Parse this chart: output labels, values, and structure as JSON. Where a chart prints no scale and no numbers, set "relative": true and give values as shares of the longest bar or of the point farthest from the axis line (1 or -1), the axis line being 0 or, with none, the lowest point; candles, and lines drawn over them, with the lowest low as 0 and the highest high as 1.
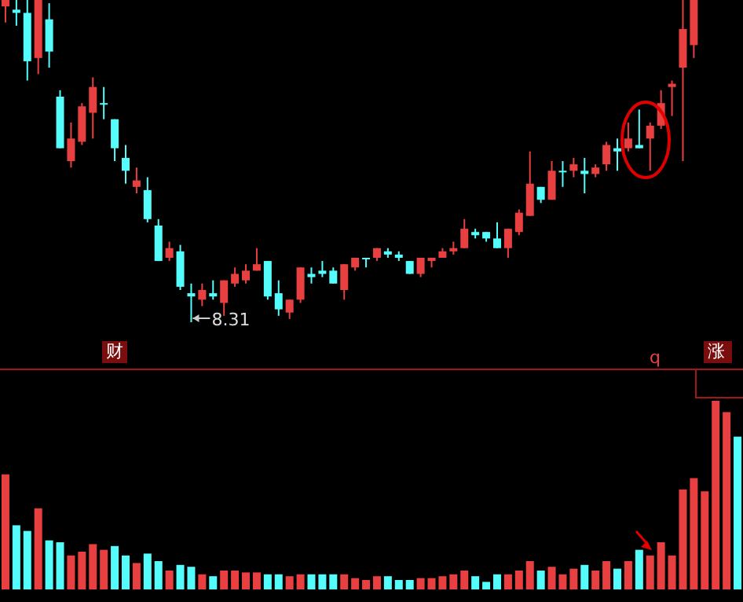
{
  "chart_data": [
    {
      "type": "candlestick",
      "relative": true,
      "categories": [
        null,
        null,
        null,
        null,
        null,
        null,
        null,
        null,
        null,
        null,
        null,
        null,
        null,
        null,
        null,
        null,
        null,
        null,
        null,
        null,
        null,
        null,
        null,
        null,
        null,
        null,
        null,
        null,
        null,
        null,
        null,
        null,
        null,
        null,
        null,
        null,
        null,
        null,
        null,
        null,
        null,
        null,
        null,
        null,
        null,
        null,
        null,
        null,
        null,
        null,
        null,
        null,
        null,
        null,
        null,
        null,
        null,
        null,
        null,
        null,
        null,
        null,
        null,
        null,
        null,
        null,
        null,
        null
      ],
      "ohlc": [
        [
          0.98,
          1.0,
          0.93,
          1.0
        ],
        [
          0.97,
          1.0,
          0.92,
          0.96
        ],
        [
          0.96,
          1.0,
          0.75,
          0.81
        ],
        [
          0.82,
          1.0,
          0.77,
          1.0
        ],
        [
          0.94,
          0.99,
          0.79,
          0.84
        ],
        [
          0.7,
          0.72,
          0.54,
          0.54
        ],
        [
          0.5,
          0.62,
          0.48,
          0.57
        ],
        [
          0.56,
          0.68,
          0.55,
          0.67
        ],
        [
          0.65,
          0.76,
          0.57,
          0.73
        ],
        [
          0.68,
          0.73,
          0.63,
          0.68
        ],
        [
          0.63,
          0.63,
          0.5,
          0.54
        ],
        [
          0.51,
          0.55,
          0.43,
          0.47
        ],
        [
          0.42,
          0.48,
          0.4,
          0.44
        ],
        [
          0.41,
          0.45,
          0.31,
          0.32
        ],
        [
          0.3,
          0.32,
          0.19,
          0.19
        ],
        [
          0.2,
          0.25,
          0.19,
          0.23
        ],
        [
          0.22,
          0.24,
          0.1,
          0.11
        ],
        [
          0.09,
          0.12,
          0.0,
          0.08
        ],
        [
          0.07,
          0.12,
          0.05,
          0.1
        ],
        [
          0.09,
          0.13,
          0.07,
          0.08
        ],
        [
          0.06,
          0.13,
          0.02,
          0.13
        ],
        [
          0.12,
          0.17,
          0.11,
          0.15
        ],
        [
          0.13,
          0.18,
          0.12,
          0.16
        ],
        [
          0.16,
          0.23,
          0.16,
          0.18
        ],
        [
          0.19,
          0.19,
          0.07,
          0.08
        ],
        [
          0.09,
          0.13,
          0.02,
          0.04
        ],
        [
          0.03,
          0.07,
          0.01,
          0.07
        ],
        [
          0.07,
          0.17,
          0.06,
          0.17
        ],
        [
          0.15,
          0.17,
          0.12,
          0.14
        ],
        [
          0.16,
          0.19,
          0.14,
          0.15
        ],
        [
          0.16,
          0.17,
          0.12,
          0.12
        ],
        [
          0.1,
          0.18,
          0.07,
          0.18
        ],
        [
          0.17,
          0.2,
          0.16,
          0.2
        ],
        [
          0.2,
          0.2,
          0.17,
          0.2
        ],
        [
          0.2,
          0.23,
          0.19,
          0.23
        ],
        [
          0.22,
          0.23,
          0.2,
          0.21
        ],
        [
          0.21,
          0.22,
          0.19,
          0.2
        ],
        [
          0.19,
          0.19,
          0.15,
          0.15
        ],
        [
          0.15,
          0.2,
          0.14,
          0.2
        ],
        [
          0.19,
          0.2,
          0.17,
          0.2
        ],
        [
          0.2,
          0.23,
          0.2,
          0.22
        ],
        [
          0.22,
          0.25,
          0.21,
          0.23
        ],
        [
          0.23,
          0.32,
          0.23,
          0.29
        ],
        [
          0.28,
          0.29,
          0.26,
          0.27
        ],
        [
          0.28,
          0.28,
          0.25,
          0.26
        ],
        [
          0.26,
          0.31,
          0.23,
          0.23
        ],
        [
          0.23,
          0.29,
          0.2,
          0.29
        ],
        [
          0.28,
          0.35,
          0.27,
          0.34
        ],
        [
          0.33,
          0.53,
          0.33,
          0.43
        ],
        [
          0.42,
          0.42,
          0.37,
          0.38
        ],
        [
          0.38,
          0.5,
          0.38,
          0.47
        ],
        [
          0.47,
          0.5,
          0.42,
          0.47
        ],
        [
          0.47,
          0.51,
          0.45,
          0.49
        ],
        [
          0.47,
          0.51,
          0.4,
          0.46
        ],
        [
          0.46,
          0.49,
          0.45,
          0.48
        ],
        [
          0.49,
          0.56,
          0.47,
          0.55
        ],
        [
          0.54,
          0.57,
          0.47,
          0.53
        ],
        [
          0.54,
          0.62,
          0.53,
          0.57
        ],
        [
          0.55,
          0.66,
          0.54,
          0.54
        ],
        [
          0.57,
          0.62,
          0.47,
          0.61
        ],
        [
          0.61,
          0.72,
          0.6,
          0.68
        ],
        [
          0.73,
          0.75,
          0.64,
          0.74
        ],
        [
          0.79,
          1.0,
          0.5,
          0.91
        ],
        [
          0.86,
          1.0,
          0.82,
          1.0
        ],
        null,
        null,
        null,
        null
      ],
      "annotations": [
        "8.31",
        "财",
        "q",
        "涨"
      ]
    },
    {
      "type": "bar",
      "relative": true,
      "categories": [
        null,
        null,
        null,
        null,
        null,
        null,
        null,
        null,
        null,
        null,
        null,
        null,
        null,
        null,
        null,
        null,
        null,
        null,
        null,
        null,
        null,
        null,
        null,
        null,
        null,
        null,
        null,
        null,
        null,
        null,
        null,
        null,
        null,
        null,
        null,
        null,
        null,
        null,
        null,
        null,
        null,
        null,
        null,
        null,
        null,
        null,
        null,
        null,
        null,
        null,
        null,
        null,
        null,
        null,
        null,
        null,
        null,
        null,
        null,
        null,
        null,
        null,
        null,
        null,
        null,
        null,
        null,
        null
      ],
      "values": [
        0.61,
        0.34,
        0.31,
        0.43,
        0.26,
        0.25,
        0.18,
        0.2,
        0.24,
        0.21,
        0.23,
        0.18,
        0.14,
        0.19,
        0.15,
        0.1,
        0.13,
        0.12,
        0.08,
        0.07,
        0.1,
        0.1,
        0.09,
        0.09,
        0.08,
        0.08,
        0.07,
        0.08,
        0.08,
        0.08,
        0.08,
        0.08,
        0.06,
        0.05,
        0.07,
        0.07,
        0.05,
        0.05,
        0.06,
        0.06,
        0.07,
        0.08,
        0.1,
        0.07,
        0.04,
        0.08,
        0.08,
        0.1,
        0.15,
        0.1,
        0.12,
        0.08,
        0.11,
        0.13,
        0.1,
        0.15,
        0.11,
        0.15,
        0.21,
        0.18,
        0.25,
        0.18,
        0.53,
        0.59,
        0.52,
        1.0,
        0.94,
        0.81
      ],
      "colors": [
        "#e84040",
        "#54fcfc",
        "#54fcfc",
        "#e84040",
        "#54fcfc",
        "#54fcfc",
        "#e84040",
        "#e84040",
        "#e84040",
        "#e84040",
        "#54fcfc",
        "#54fcfc",
        "#e84040",
        "#54fcfc",
        "#54fcfc",
        "#e84040",
        "#54fcfc",
        "#54fcfc",
        "#e84040",
        "#54fcfc",
        "#e84040",
        "#e84040",
        "#e84040",
        "#e84040",
        "#54fcfc",
        "#54fcfc",
        "#e84040",
        "#e84040",
        "#54fcfc",
        "#54fcfc",
        "#54fcfc",
        "#e84040",
        "#e84040",
        "#e84040",
        "#e84040",
        "#54fcfc",
        "#54fcfc",
        "#54fcfc",
        "#e84040",
        "#e84040",
        "#e84040",
        "#e84040",
        "#e84040",
        "#54fcfc",
        "#54fcfc",
        "#54fcfc",
        "#e84040",
        "#e84040",
        "#e84040",
        "#54fcfc",
        "#e84040",
        "#e84040",
        "#e84040",
        "#54fcfc",
        "#e84040",
        "#e84040",
        "#54fcfc",
        "#e84040",
        "#54fcfc",
        "#e84040",
        "#e84040",
        "#e84040",
        "#e84040",
        "#e84040",
        "#e84040",
        "#e84040",
        "#e84040",
        "#54fcfc"
      ]
    }
  ]
}
